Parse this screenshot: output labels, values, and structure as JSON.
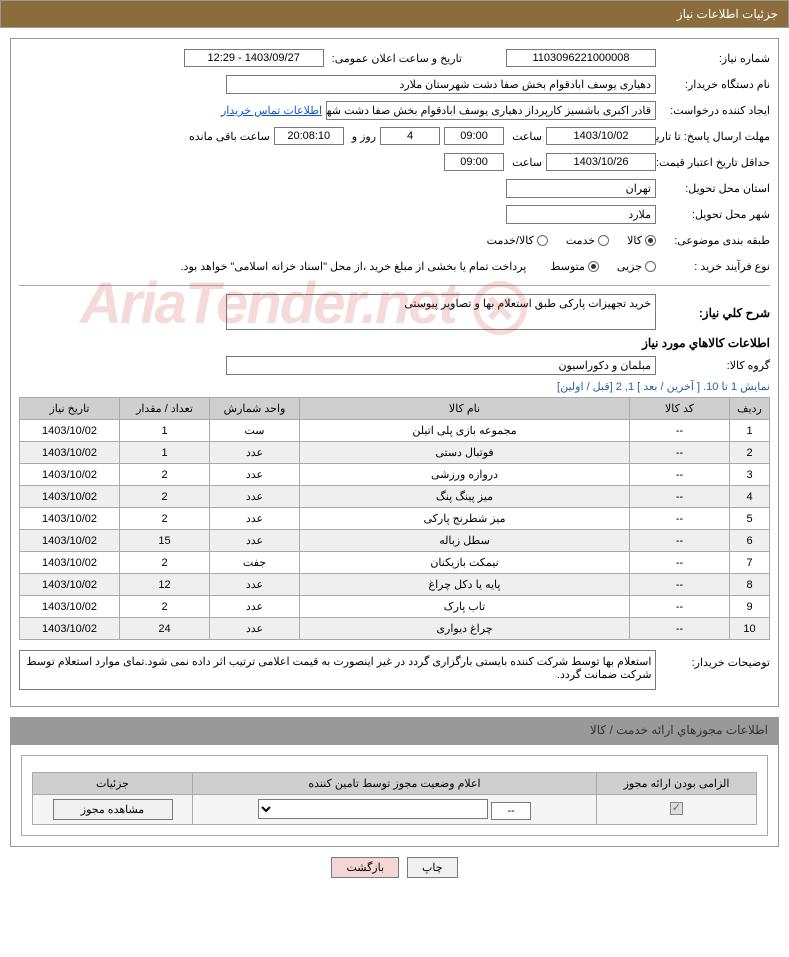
{
  "header": {
    "title": "جزئیات اطلاعات نیاز"
  },
  "need_number": {
    "label": "شماره نیاز:",
    "value": "1103096221000008"
  },
  "announce_dt": {
    "label": "تاریخ و ساعت اعلان عمومی:",
    "value": "1403/09/27 - 12:29"
  },
  "buyer_org": {
    "label": "نام دستگاه خریدار:",
    "value": "دهیاری یوسف ابادقوام بخش صفا دشت شهرستان ملارد"
  },
  "requester": {
    "label": "ایجاد کننده درخواست:",
    "value": "قادر اکبری باشسیز کارپرداز دهیاری یوسف ابادقوام بخش صفا دشت شهرستان م",
    "contact_link": "اطلاعات تماس خریدار"
  },
  "deadline": {
    "label": "مهلت ارسال پاسخ: تا تاریخ:",
    "date": "1403/10/02",
    "time_label": "ساعت",
    "time": "09:00",
    "days": "4",
    "days_label": "روز و",
    "countdown": "20:08:10",
    "remain_label": "ساعت باقی مانده"
  },
  "validity": {
    "label": "حداقل تاریخ اعتبار قیمت: تا تاریخ:",
    "date": "1403/10/26",
    "time_label": "ساعت",
    "time": "09:00"
  },
  "province": {
    "label": "استان محل تحویل:",
    "value": "تهران"
  },
  "city": {
    "label": "شهر محل تحویل:",
    "value": "ملارد"
  },
  "category": {
    "label": "طبقه بندی موضوعی:",
    "opts": [
      "کالا",
      "خدمت",
      "کالا/خدمت"
    ],
    "selected": 0
  },
  "proc_type": {
    "label": "نوع فرآیند خرید :",
    "opts": [
      "جزیی",
      "متوسط"
    ],
    "selected": 1,
    "note": "پرداخت تمام یا بخشی از مبلغ خرید ،از محل \"اسناد خزانه اسلامی\" خواهد بود."
  },
  "need_desc": {
    "label": "شرح کلي نیاز:",
    "value": "خرید تجهیزات پارکی طبق استعلام بها و تصاویر پیوستی"
  },
  "items_section": {
    "title": "اطلاعات کالاهاي مورد نیاز"
  },
  "group": {
    "label": "گروه کالا:",
    "value": "مبلمان و دکوراسیون"
  },
  "pager": {
    "text": "نمایش 1 تا 10. [ آخرین / بعد ] 1, 2 [قبل / اولین]"
  },
  "table": {
    "headers": [
      "ردیف",
      "کد کالا",
      "نام کالا",
      "واحد شمارش",
      "تعداد / مقدار",
      "تاریخ نیاز"
    ],
    "rows": [
      [
        "1",
        "--",
        "مجموعه بازی پلی اتیلن",
        "ست",
        "1",
        "1403/10/02"
      ],
      [
        "2",
        "--",
        "فوتبال دستی",
        "عدد",
        "1",
        "1403/10/02"
      ],
      [
        "3",
        "--",
        "دروازه ورزشی",
        "عدد",
        "2",
        "1403/10/02"
      ],
      [
        "4",
        "--",
        "میز پینگ پنگ",
        "عدد",
        "2",
        "1403/10/02"
      ],
      [
        "5",
        "--",
        "میز شطرنج پارکی",
        "عدد",
        "2",
        "1403/10/02"
      ],
      [
        "6",
        "--",
        "سطل زباله",
        "عدد",
        "15",
        "1403/10/02"
      ],
      [
        "7",
        "--",
        "نیمکت بازیکنان",
        "جفت",
        "2",
        "1403/10/02"
      ],
      [
        "8",
        "--",
        "پایه یا دکل چراغ",
        "عدد",
        "12",
        "1403/10/02"
      ],
      [
        "9",
        "--",
        "تاب پارک",
        "عدد",
        "2",
        "1403/10/02"
      ],
      [
        "10",
        "--",
        "چراغ دیواری",
        "عدد",
        "24",
        "1403/10/02"
      ]
    ],
    "col_widths": [
      "40px",
      "100px",
      "auto",
      "90px",
      "90px",
      "100px"
    ]
  },
  "buyer_notes": {
    "label": "توضیحات خریدار:",
    "value": "استعلام بها توسط شرکت کننده بایستی بارگزاری گردد در غیر اینصورت به قیمت اعلامی ترتیب اثر داده نمی شود.تمای موارد استعلام توسط شرکت ضمانت گردد."
  },
  "license_section": {
    "title": "اطلاعات مجوزهاي ارائه خدمت / کالا"
  },
  "license_table": {
    "headers": [
      "الزامی بودن ارائه مجوز",
      "اعلام وضعیت مجوز توسط تامین کننده",
      "جزئیات"
    ],
    "row": {
      "select_val": "--",
      "details_btn": "مشاهده مجوز"
    }
  },
  "buttons": {
    "print": "چاپ",
    "back": "بازگشت"
  },
  "colors": {
    "header_bg": "#8a6d3b",
    "border": "#999",
    "th_bg": "#cfcfcf",
    "row_alt": "#efefef"
  }
}
